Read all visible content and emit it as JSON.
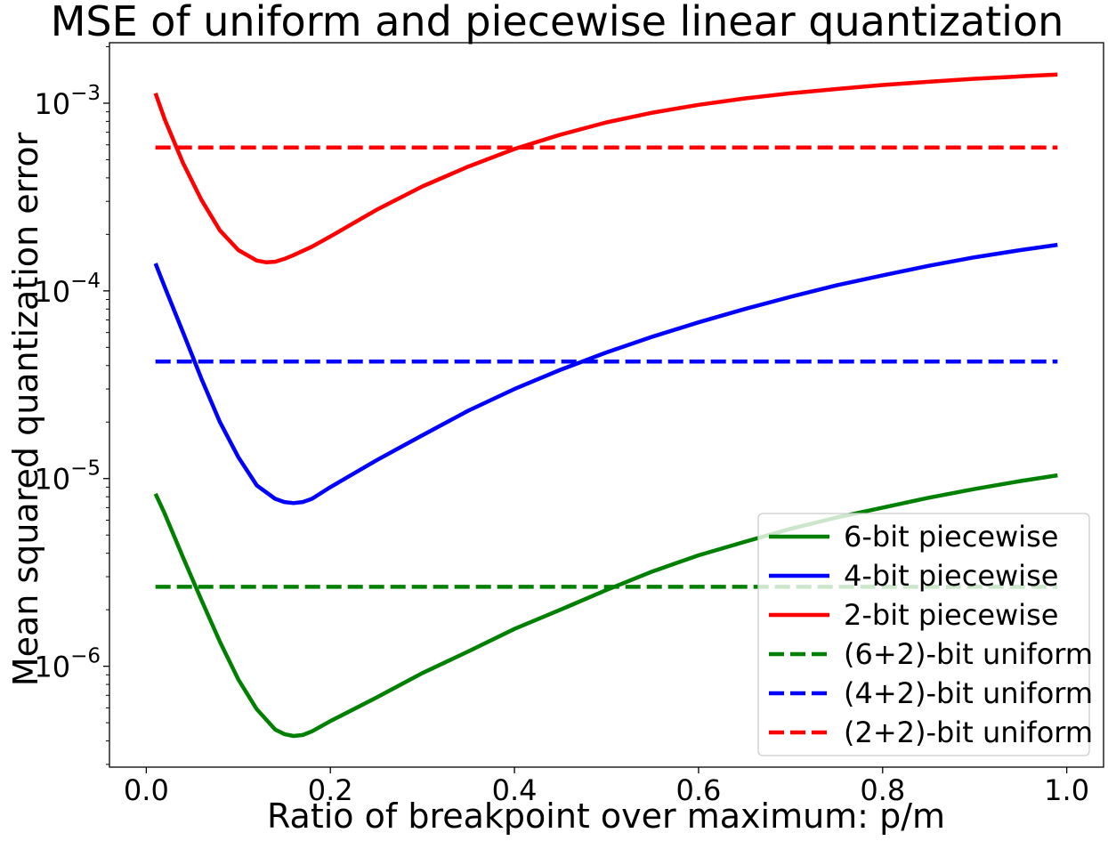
{
  "chart_data": {
    "type": "line",
    "title": "MSE of uniform and piecewise linear quantization",
    "xlabel": "Ratio of breakpoint over maximum: p/m",
    "ylabel": "Mean squared quantization error",
    "yscale": "log",
    "xlim": [
      -0.04,
      1.04
    ],
    "ylim": [
      2.9e-07,
      0.0021
    ],
    "xticks": [
      0.0,
      0.2,
      0.4,
      0.6,
      0.8,
      1.0
    ],
    "xtick_labels": [
      "0.0",
      "0.2",
      "0.4",
      "0.6",
      "0.8",
      "1.0"
    ],
    "yticks": [
      1e-06,
      1e-05,
      0.0001,
      0.001
    ],
    "ytick_labels": [
      {
        "base": "10",
        "exp": "−6"
      },
      {
        "base": "10",
        "exp": "−5"
      },
      {
        "base": "10",
        "exp": "−4"
      },
      {
        "base": "10",
        "exp": "−3"
      }
    ],
    "grid": false,
    "legend_position": "lower-right",
    "series": [
      {
        "name": "6-bit piecewise",
        "color": "#008000",
        "style": "solid",
        "x": [
          0.01,
          0.02,
          0.04,
          0.06,
          0.08,
          0.1,
          0.12,
          0.14,
          0.15,
          0.16,
          0.17,
          0.18,
          0.2,
          0.25,
          0.3,
          0.35,
          0.4,
          0.45,
          0.5,
          0.55,
          0.6,
          0.65,
          0.7,
          0.75,
          0.8,
          0.85,
          0.9,
          0.95,
          0.99
        ],
        "y": [
          8.3e-06,
          6.5e-06,
          3.8e-06,
          2.25e-06,
          1.35e-06,
          8.5e-07,
          5.9e-07,
          4.6e-07,
          4.35e-07,
          4.25e-07,
          4.3e-07,
          4.5e-07,
          5.1e-07,
          6.8e-07,
          9.2e-07,
          1.2e-06,
          1.58e-06,
          2e-06,
          2.55e-06,
          3.2e-06,
          3.9e-06,
          4.6e-06,
          5.4e-06,
          6.2e-06,
          7e-06,
          7.9e-06,
          8.8e-06,
          9.7e-06,
          1.04e-05
        ]
      },
      {
        "name": "4-bit piecewise",
        "color": "#0000ff",
        "style": "solid",
        "x": [
          0.01,
          0.02,
          0.04,
          0.06,
          0.08,
          0.1,
          0.12,
          0.14,
          0.15,
          0.16,
          0.17,
          0.18,
          0.2,
          0.25,
          0.3,
          0.35,
          0.4,
          0.45,
          0.5,
          0.55,
          0.6,
          0.65,
          0.7,
          0.75,
          0.8,
          0.85,
          0.9,
          0.95,
          0.99
        ],
        "y": [
          0.00014,
          0.000105,
          6e-05,
          3.4e-05,
          2e-05,
          1.3e-05,
          9.2e-06,
          7.8e-06,
          7.5e-06,
          7.4e-06,
          7.5e-06,
          7.8e-06,
          9e-06,
          1.25e-05,
          1.7e-05,
          2.3e-05,
          3e-05,
          3.8e-05,
          4.7e-05,
          5.7e-05,
          6.8e-05,
          8e-05,
          9.3e-05,
          0.000107,
          0.000121,
          0.000136,
          0.000151,
          0.000165,
          0.000176
        ]
      },
      {
        "name": "2-bit piecewise",
        "color": "#ff0000",
        "style": "solid",
        "x": [
          0.01,
          0.02,
          0.04,
          0.06,
          0.08,
          0.1,
          0.12,
          0.13,
          0.14,
          0.15,
          0.16,
          0.18,
          0.2,
          0.25,
          0.3,
          0.35,
          0.4,
          0.45,
          0.5,
          0.55,
          0.6,
          0.65,
          0.7,
          0.75,
          0.8,
          0.85,
          0.9,
          0.95,
          0.99
        ],
        "y": [
          0.00113,
          0.00082,
          0.00048,
          0.000305,
          0.00021,
          0.000165,
          0.000145,
          0.000142,
          0.000143,
          0.000148,
          0.000155,
          0.000172,
          0.000195,
          0.00027,
          0.00036,
          0.00046,
          0.00057,
          0.00068,
          0.00079,
          0.00089,
          0.00098,
          0.00106,
          0.00113,
          0.00119,
          0.00125,
          0.0013,
          0.00135,
          0.00139,
          0.00142
        ]
      },
      {
        "name": "(6+2)-bit uniform",
        "color": "#008000",
        "style": "dashed",
        "x": [
          0.01,
          0.99
        ],
        "y": [
          2.65e-06,
          2.65e-06
        ]
      },
      {
        "name": "(4+2)-bit uniform",
        "color": "#0000ff",
        "style": "dashed",
        "x": [
          0.01,
          0.99
        ],
        "y": [
          4.2e-05,
          4.2e-05
        ]
      },
      {
        "name": "(2+2)-bit uniform",
        "color": "#ff0000",
        "style": "dashed",
        "x": [
          0.01,
          0.99
        ],
        "y": [
          0.00058,
          0.00058
        ]
      }
    ]
  }
}
